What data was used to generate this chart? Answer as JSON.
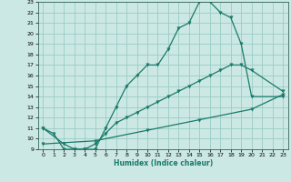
{
  "xlabel": "Humidex (Indice chaleur)",
  "background_color": "#cce8e4",
  "grid_color": "#99ccc4",
  "line_color": "#1a7a6a",
  "xlim": [
    -0.5,
    23.5
  ],
  "ylim": [
    9,
    23
  ],
  "xticks": [
    0,
    1,
    2,
    3,
    4,
    5,
    6,
    7,
    8,
    9,
    10,
    11,
    12,
    13,
    14,
    15,
    16,
    17,
    18,
    19,
    20,
    21,
    22,
    23
  ],
  "yticks": [
    9,
    10,
    11,
    12,
    13,
    14,
    15,
    16,
    17,
    18,
    19,
    20,
    21,
    22,
    23
  ],
  "line1_x": [
    0,
    1,
    2,
    3,
    4,
    5,
    6,
    7,
    8,
    9,
    10,
    11,
    12,
    13,
    14,
    15,
    16,
    17,
    18,
    19,
    20,
    23
  ],
  "line1_y": [
    11,
    10.5,
    9,
    9,
    9,
    9,
    11,
    13,
    15,
    16,
    17,
    17,
    18.5,
    20.5,
    21,
    23,
    23,
    22,
    21.5,
    19,
    14,
    14
  ],
  "line2_x": [
    0,
    2,
    3,
    4,
    5,
    6,
    7,
    8,
    9,
    10,
    11,
    12,
    13,
    14,
    15,
    16,
    17,
    18,
    19,
    20,
    23
  ],
  "line2_y": [
    11,
    9.5,
    9,
    9,
    9.5,
    10.5,
    11.5,
    12,
    12.5,
    13,
    13.5,
    14,
    14.5,
    15,
    15.5,
    16,
    16.5,
    17,
    17,
    16.5,
    14.5
  ],
  "line3_x": [
    0,
    5,
    10,
    15,
    20,
    23
  ],
  "line3_y": [
    9.5,
    9.8,
    10.8,
    11.8,
    12.8,
    14.2
  ]
}
